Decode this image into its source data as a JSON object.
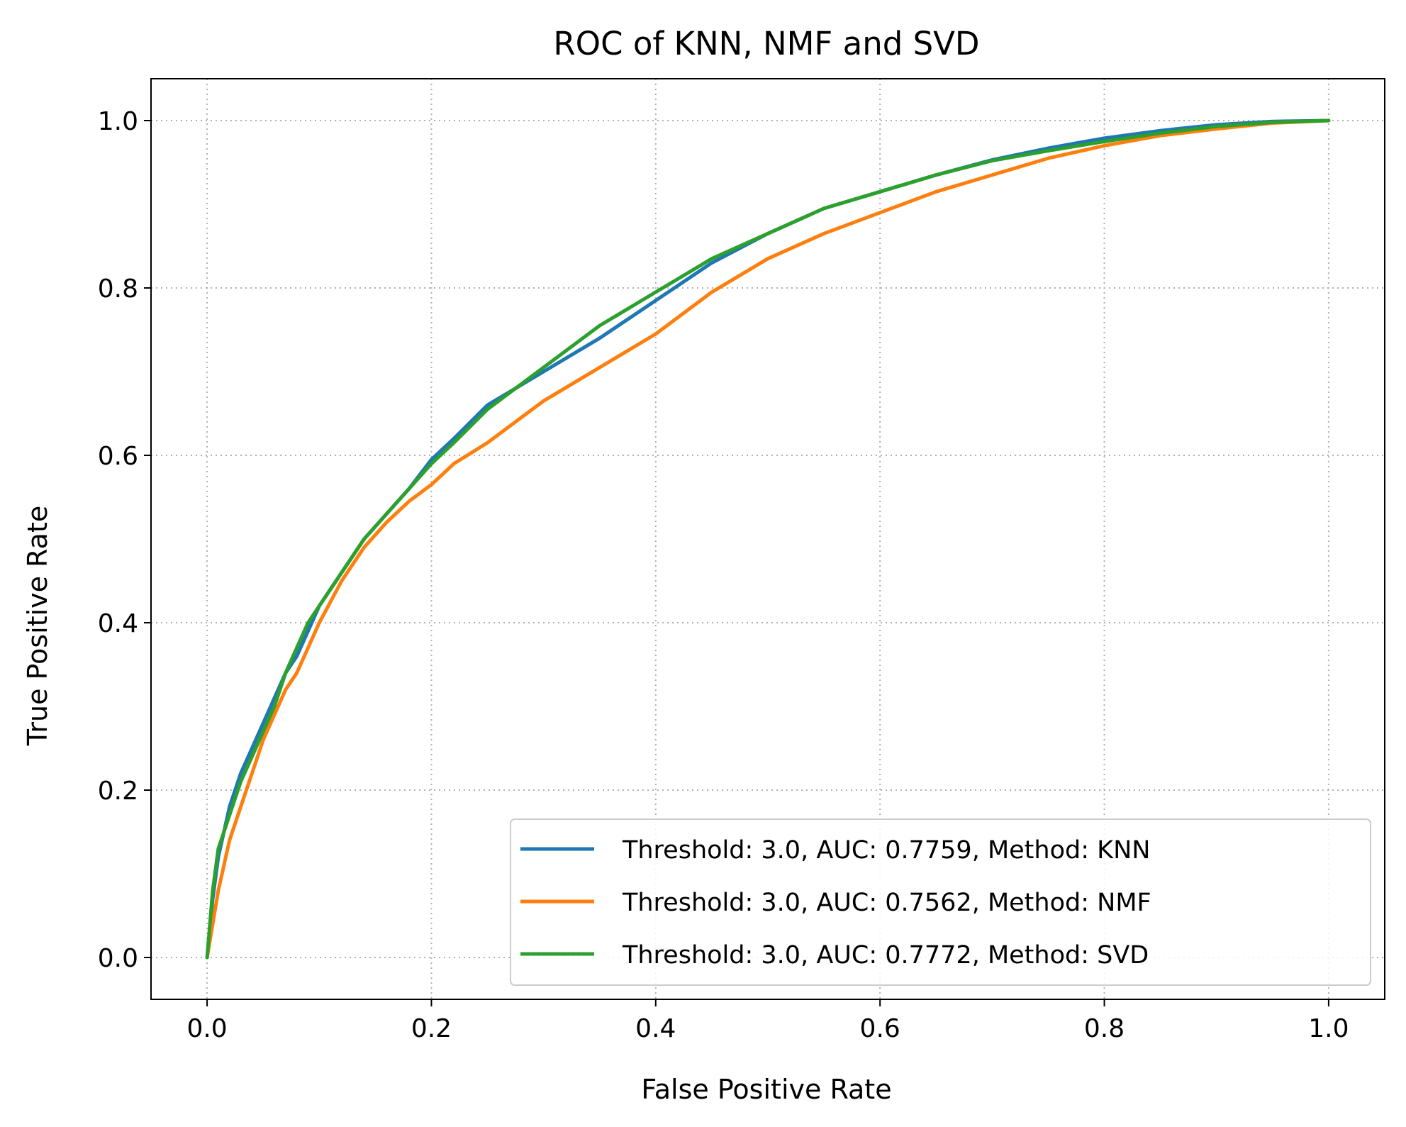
{
  "chart_data": {
    "type": "line",
    "title": "ROC of KNN, NMF and SVD",
    "xlabel": "False Positive Rate",
    "ylabel": "True Positive Rate",
    "xlim": [
      -0.05,
      1.05
    ],
    "ylim": [
      -0.05,
      1.05
    ],
    "xticks": [
      "0.0",
      "0.2",
      "0.4",
      "0.6",
      "0.8",
      "1.0"
    ],
    "yticks": [
      "0.0",
      "0.2",
      "0.4",
      "0.6",
      "0.8",
      "1.0"
    ],
    "grid": true,
    "legend_position": "lower-right",
    "series": [
      {
        "name": "Threshold: 3.0, AUC: 0.7759, Method: KNN",
        "color": "#1f77b4",
        "x": [
          0.0,
          0.005,
          0.01,
          0.015,
          0.02,
          0.03,
          0.04,
          0.05,
          0.06,
          0.07,
          0.08,
          0.09,
          0.1,
          0.12,
          0.14,
          0.16,
          0.18,
          0.2,
          0.22,
          0.25,
          0.3,
          0.35,
          0.4,
          0.45,
          0.5,
          0.55,
          0.6,
          0.65,
          0.7,
          0.75,
          0.8,
          0.85,
          0.9,
          0.95,
          1.0
        ],
        "y": [
          0.0,
          0.07,
          0.12,
          0.15,
          0.18,
          0.22,
          0.25,
          0.28,
          0.31,
          0.34,
          0.36,
          0.39,
          0.42,
          0.46,
          0.5,
          0.53,
          0.56,
          0.595,
          0.62,
          0.66,
          0.7,
          0.74,
          0.785,
          0.83,
          0.865,
          0.895,
          0.915,
          0.935,
          0.953,
          0.967,
          0.979,
          0.988,
          0.995,
          0.999,
          1.0
        ]
      },
      {
        "name": "Threshold: 3.0, AUC: 0.7562, Method: NMF",
        "color": "#ff7f0e",
        "x": [
          0.0,
          0.005,
          0.01,
          0.015,
          0.02,
          0.03,
          0.04,
          0.05,
          0.06,
          0.07,
          0.08,
          0.09,
          0.1,
          0.12,
          0.14,
          0.16,
          0.18,
          0.2,
          0.22,
          0.25,
          0.3,
          0.35,
          0.4,
          0.45,
          0.5,
          0.55,
          0.6,
          0.65,
          0.7,
          0.75,
          0.8,
          0.85,
          0.9,
          0.95,
          1.0
        ],
        "y": [
          0.0,
          0.04,
          0.08,
          0.11,
          0.14,
          0.18,
          0.22,
          0.26,
          0.29,
          0.32,
          0.34,
          0.37,
          0.4,
          0.45,
          0.49,
          0.52,
          0.545,
          0.565,
          0.59,
          0.615,
          0.665,
          0.705,
          0.745,
          0.795,
          0.835,
          0.865,
          0.89,
          0.915,
          0.935,
          0.955,
          0.97,
          0.982,
          0.99,
          0.997,
          1.0
        ]
      },
      {
        "name": "Threshold: 3.0, AUC: 0.7772, Method: SVD",
        "color": "#2ca02c",
        "x": [
          0.0,
          0.005,
          0.01,
          0.015,
          0.02,
          0.03,
          0.04,
          0.05,
          0.06,
          0.07,
          0.08,
          0.09,
          0.1,
          0.12,
          0.14,
          0.16,
          0.18,
          0.2,
          0.22,
          0.25,
          0.3,
          0.35,
          0.4,
          0.45,
          0.5,
          0.55,
          0.6,
          0.65,
          0.7,
          0.75,
          0.8,
          0.85,
          0.9,
          0.95,
          1.0
        ],
        "y": [
          0.0,
          0.08,
          0.13,
          0.15,
          0.17,
          0.21,
          0.24,
          0.27,
          0.3,
          0.34,
          0.37,
          0.4,
          0.42,
          0.46,
          0.5,
          0.53,
          0.56,
          0.59,
          0.615,
          0.655,
          0.705,
          0.755,
          0.795,
          0.835,
          0.865,
          0.895,
          0.915,
          0.935,
          0.952,
          0.964,
          0.975,
          0.985,
          0.993,
          0.998,
          1.0
        ]
      }
    ]
  }
}
